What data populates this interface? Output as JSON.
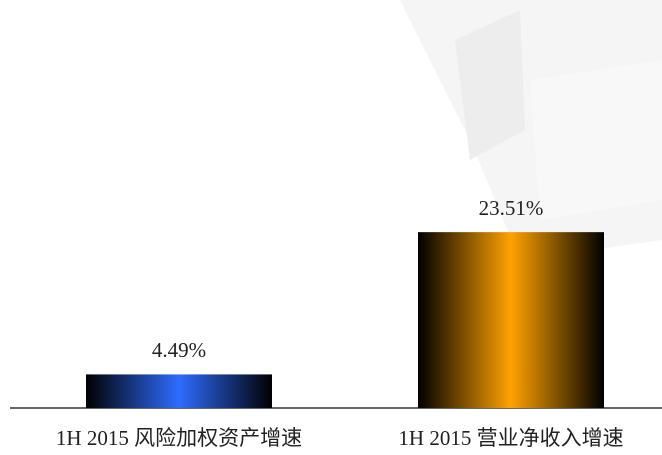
{
  "chart_data": {
    "type": "bar",
    "categories": [
      "1H 2015 风险加权资产增速",
      "1H 2015 营业净收入增速"
    ],
    "values": [
      4.49,
      23.51
    ],
    "value_labels": [
      "4.49%",
      "23.51%"
    ],
    "colors": [
      "#2e6cff",
      "#ffa200"
    ]
  }
}
